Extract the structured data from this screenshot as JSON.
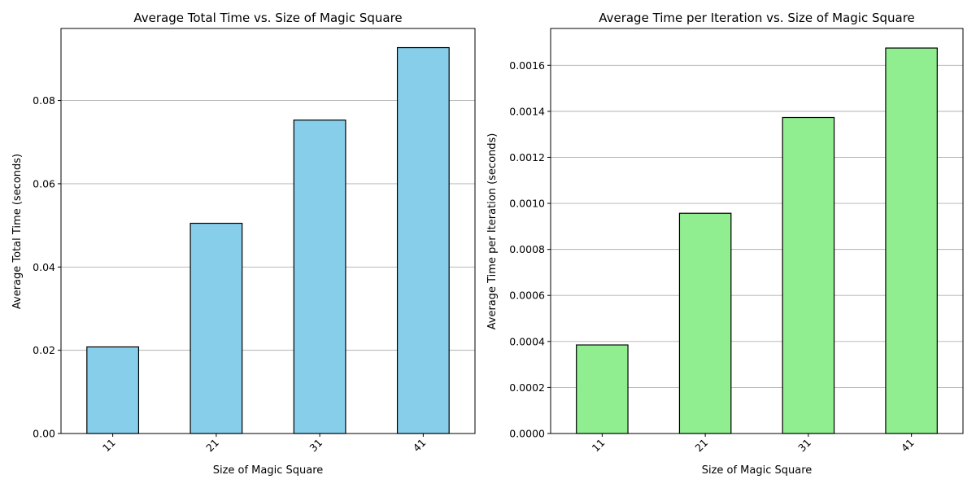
{
  "chart_data": [
    {
      "type": "bar",
      "title": "Average Total Time vs. Size of Magic Square",
      "xlabel": "Size of Magic Square",
      "ylabel": "Average Total Time (seconds)",
      "categories": [
        "11",
        "21",
        "31",
        "41"
      ],
      "values": [
        0.0208,
        0.0505,
        0.0753,
        0.0927
      ],
      "ylim": [
        0,
        0.0973
      ],
      "yticks": [
        "0.00",
        "0.02",
        "0.04",
        "0.06",
        "0.08"
      ],
      "ytick_values": [
        0,
        0.02,
        0.04,
        0.06,
        0.08
      ],
      "bar_color": "#87ceeb",
      "edge_color": "#000000",
      "grid": "y-axis",
      "xtick_rotation": "45"
    },
    {
      "type": "bar",
      "title": "Average Time per Iteration vs. Size of Magic Square",
      "xlabel": "Size of Magic Square",
      "ylabel": "Average Time per Iteration (seconds)",
      "categories": [
        "11",
        "21",
        "31",
        "41"
      ],
      "values": [
        0.000385,
        0.000957,
        0.001373,
        0.001675
      ],
      "ylim": [
        0,
        0.00176
      ],
      "yticks": [
        "0.0000",
        "0.0002",
        "0.0004",
        "0.0006",
        "0.0008",
        "0.0010",
        "0.0012",
        "0.0014",
        "0.0016"
      ],
      "ytick_values": [
        0,
        0.0002,
        0.0004,
        0.0006,
        0.0008,
        0.001,
        0.0012,
        0.0014,
        0.0016
      ],
      "bar_color": "#90ee90",
      "edge_color": "#000000",
      "grid": "y-axis",
      "xtick_rotation": "45"
    }
  ]
}
